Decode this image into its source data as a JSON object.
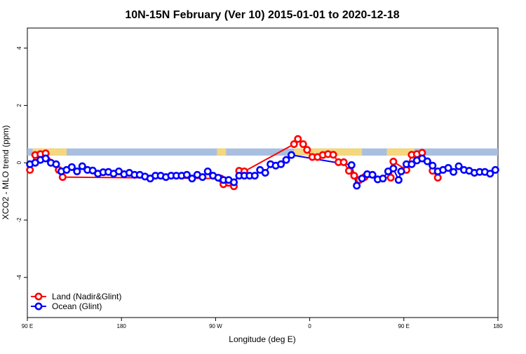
{
  "chart_data": {
    "type": "scatter",
    "title": "10N-15N February (Ver 10)   2015-01-01 to 2020-12-18",
    "xlabel": "Longitude (deg E)",
    "ylabel": "XCO2 - MLO trend (ppm)",
    "xlim": [
      0,
      360
    ],
    "ylim": [
      -5.4,
      4.7
    ],
    "xticks": [
      {
        "value": 0,
        "label": "90 E"
      },
      {
        "value": 72,
        "label": "180"
      },
      {
        "value": 144,
        "label": "90 W"
      },
      {
        "value": 216,
        "label": "0"
      },
      {
        "value": 288,
        "label": "90 E"
      },
      {
        "value": 360,
        "label": "180"
      }
    ],
    "yticks": [
      {
        "value": -4,
        "label": "-4"
      },
      {
        "value": -2,
        "label": "-2"
      },
      {
        "value": 0,
        "label": "0"
      },
      {
        "value": 2,
        "label": "2"
      },
      {
        "value": 4,
        "label": "4"
      }
    ],
    "grid": false,
    "legend_position": "bottom-left",
    "background_band": {
      "y0": 0.25,
      "y1": 0.5,
      "ocean_color": "#a8bfe0",
      "land_color": "#f5d77c"
    },
    "land_segments": [
      [
        4,
        30
      ],
      [
        145,
        152
      ],
      [
        204,
        256
      ],
      [
        275,
        296
      ]
    ],
    "series": [
      {
        "name": "Land (Nadir&Glint)",
        "color": "#ff0000",
        "points": [
          [
            2,
            -0.25
          ],
          [
            6,
            0.27
          ],
          [
            10,
            0.3
          ],
          [
            14,
            0.33
          ],
          [
            24,
            -0.25
          ],
          [
            27,
            -0.5
          ],
          [
            148,
            -0.55
          ],
          [
            150,
            -0.75
          ],
          [
            154,
            -0.7
          ],
          [
            158,
            -0.82
          ],
          [
            162,
            -0.28
          ],
          [
            166,
            -0.3
          ],
          [
            204,
            0.65
          ],
          [
            207,
            0.83
          ],
          [
            211,
            0.65
          ],
          [
            214,
            0.45
          ],
          [
            218,
            0.2
          ],
          [
            222,
            0.2
          ],
          [
            226,
            0.27
          ],
          [
            230,
            0.3
          ],
          [
            234,
            0.28
          ],
          [
            238,
            0.02
          ],
          [
            242,
            0.02
          ],
          [
            246,
            -0.28
          ],
          [
            250,
            -0.45
          ],
          [
            254,
            -0.6
          ],
          [
            258,
            -0.5
          ],
          [
            278,
            -0.52
          ],
          [
            280,
            0.04
          ],
          [
            290,
            -0.25
          ],
          [
            294,
            0.28
          ],
          [
            298,
            0.3
          ],
          [
            302,
            0.35
          ],
          [
            310,
            -0.28
          ],
          [
            314,
            -0.52
          ]
        ]
      },
      {
        "name": "Ocean (Glint)",
        "color": "#0000ff",
        "points": [
          [
            2,
            -0.05
          ],
          [
            6,
            0.0
          ],
          [
            10,
            0.1
          ],
          [
            14,
            0.15
          ],
          [
            18,
            0.0
          ],
          [
            22,
            -0.05
          ],
          [
            26,
            -0.3
          ],
          [
            30,
            -0.25
          ],
          [
            34,
            -0.15
          ],
          [
            38,
            -0.3
          ],
          [
            42,
            -0.12
          ],
          [
            46,
            -0.25
          ],
          [
            50,
            -0.27
          ],
          [
            54,
            -0.38
          ],
          [
            58,
            -0.33
          ],
          [
            62,
            -0.32
          ],
          [
            66,
            -0.38
          ],
          [
            70,
            -0.3
          ],
          [
            74,
            -0.4
          ],
          [
            78,
            -0.35
          ],
          [
            82,
            -0.42
          ],
          [
            86,
            -0.42
          ],
          [
            90,
            -0.48
          ],
          [
            94,
            -0.55
          ],
          [
            98,
            -0.45
          ],
          [
            102,
            -0.45
          ],
          [
            106,
            -0.5
          ],
          [
            110,
            -0.45
          ],
          [
            114,
            -0.45
          ],
          [
            118,
            -0.45
          ],
          [
            122,
            -0.42
          ],
          [
            126,
            -0.55
          ],
          [
            130,
            -0.42
          ],
          [
            134,
            -0.5
          ],
          [
            138,
            -0.3
          ],
          [
            142,
            -0.45
          ],
          [
            146,
            -0.52
          ],
          [
            150,
            -0.6
          ],
          [
            154,
            -0.6
          ],
          [
            158,
            -0.68
          ],
          [
            162,
            -0.45
          ],
          [
            166,
            -0.45
          ],
          [
            170,
            -0.45
          ],
          [
            174,
            -0.45
          ],
          [
            178,
            -0.25
          ],
          [
            182,
            -0.35
          ],
          [
            186,
            -0.05
          ],
          [
            190,
            -0.1
          ],
          [
            194,
            -0.05
          ],
          [
            198,
            0.1
          ],
          [
            202,
            0.27
          ],
          [
            248,
            -0.08
          ],
          [
            252,
            -0.8
          ],
          [
            256,
            -0.55
          ],
          [
            260,
            -0.4
          ],
          [
            264,
            -0.42
          ],
          [
            268,
            -0.58
          ],
          [
            272,
            -0.55
          ],
          [
            276,
            -0.3
          ],
          [
            280,
            -0.2
          ],
          [
            284,
            -0.6
          ],
          [
            286,
            -0.3
          ],
          [
            290,
            -0.05
          ],
          [
            294,
            -0.05
          ],
          [
            298,
            0.08
          ],
          [
            302,
            0.15
          ],
          [
            306,
            0.05
          ],
          [
            310,
            -0.1
          ],
          [
            314,
            -0.3
          ],
          [
            318,
            -0.25
          ],
          [
            322,
            -0.18
          ],
          [
            326,
            -0.32
          ],
          [
            330,
            -0.12
          ],
          [
            334,
            -0.25
          ],
          [
            338,
            -0.28
          ],
          [
            342,
            -0.35
          ],
          [
            346,
            -0.32
          ],
          [
            350,
            -0.32
          ],
          [
            354,
            -0.38
          ],
          [
            358,
            -0.25
          ]
        ]
      }
    ]
  }
}
